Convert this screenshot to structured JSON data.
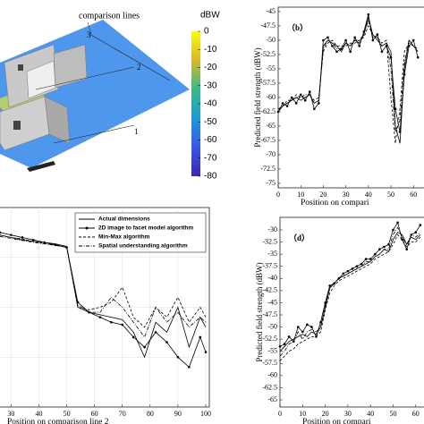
{
  "scene": {
    "annotation": "comparison lines",
    "line_labels": [
      "1",
      "2",
      "3"
    ],
    "colorbar": {
      "label": "dBW",
      "lim": [
        -80,
        0
      ],
      "ticks": [
        0,
        -10,
        -20,
        -30,
        -40,
        -50,
        -60,
        -70,
        -80
      ]
    }
  },
  "chart_data": [
    {
      "type": "line",
      "panel": "（b）",
      "ylabel": "Predicted field strength (dBW)",
      "xlabel": "Position on compari",
      "xlim": [
        0,
        62
      ],
      "ylim": [
        -75,
        -45
      ],
      "xticks": [
        0,
        10,
        20,
        30,
        40,
        50,
        60
      ],
      "yticks": [
        -45,
        -47.5,
        -50,
        -52.5,
        -55,
        -57.5,
        -60,
        -62.5,
        -65,
        -67.5,
        -70,
        -72.5,
        -75
      ],
      "grid": false,
      "x": [
        0,
        2,
        4,
        6,
        8,
        10,
        12,
        14,
        16,
        18,
        20,
        22,
        24,
        26,
        28,
        30,
        32,
        34,
        36,
        38,
        40,
        42,
        44,
        46,
        48,
        50,
        52,
        54,
        56,
        58,
        60,
        62
      ],
      "series": [
        {
          "name": "Actual dimensions",
          "color": "#000000",
          "linestyle": "solid",
          "marker": "none",
          "values": [
            -62.5,
            -61.5,
            -61,
            -60.5,
            -60,
            -60.5,
            -60,
            -59.5,
            -61,
            -60.5,
            -51,
            -50,
            -50.5,
            -51,
            -52,
            -50.5,
            -51,
            -50,
            -50.5,
            -49,
            -46,
            -49,
            -50,
            -51,
            -50.5,
            -52,
            -65,
            -68,
            -55,
            -50,
            -51,
            -52
          ]
        },
        {
          "name": "2D image to facet model algorithm",
          "color": "#000000",
          "linestyle": "solid",
          "marker": "o",
          "values": [
            -62.5,
            -61,
            -61.5,
            -60,
            -61,
            -59.5,
            -60.5,
            -59,
            -62,
            -61,
            -50,
            -49.5,
            -51,
            -52,
            -51.5,
            -50,
            -52,
            -49.5,
            -51,
            -48.5,
            -45.5,
            -50,
            -49,
            -52,
            -51,
            -53,
            -62,
            -66,
            -56,
            -51,
            -50,
            -53
          ]
        },
        {
          "name": "Min-Max algorithm",
          "color": "#000000",
          "linestyle": "dashed",
          "marker": "none",
          "values": [
            -62,
            -61.5,
            -60.5,
            -60.5,
            -59.5,
            -60,
            -60,
            -59.5,
            -60.5,
            -60,
            -52,
            -50.5,
            -50,
            -51,
            -51,
            -51,
            -50.5,
            -50.5,
            -50,
            -49.5,
            -47.5,
            -49,
            -49.5,
            -50.5,
            -50,
            -60,
            -68,
            -62,
            -52,
            -50.5,
            -51,
            -51.5
          ]
        },
        {
          "name": "Spatial understanding algorithm",
          "color": "#000000",
          "linestyle": "dashdot",
          "marker": "none",
          "values": [
            -62.5,
            -61.5,
            -61,
            -60.5,
            -60,
            -60,
            -59.5,
            -59.5,
            -61,
            -60.5,
            -51.5,
            -50,
            -50.5,
            -51.5,
            -51.5,
            -50.5,
            -51,
            -50,
            -50,
            -49,
            -46.5,
            -49.5,
            -49.5,
            -51,
            -50.5,
            -55,
            -66,
            -64,
            -54,
            -50,
            -51,
            -52
          ]
        }
      ]
    },
    {
      "type": "line",
      "xlabel": "Position on comparison line 2",
      "legend": "upper right",
      "xlim": [
        26,
        100
      ],
      "ylim": [
        -80,
        -40
      ],
      "xticks": [
        30,
        40,
        50,
        60,
        70,
        80,
        90,
        100
      ],
      "grid": true,
      "x": [
        26,
        30,
        34,
        38,
        42,
        46,
        50,
        54,
        58,
        62,
        66,
        70,
        74,
        78,
        82,
        86,
        90,
        94,
        98,
        100
      ],
      "series": [
        {
          "name": "Actual dimensions",
          "color": "#000000",
          "linestyle": "solid",
          "marker": "none",
          "values": [
            -45.5,
            -46,
            -46.5,
            -46.8,
            -47,
            -47.3,
            -47.8,
            -60,
            -61,
            -61.5,
            -62,
            -62.5,
            -65,
            -70,
            -63,
            -65,
            -60,
            -68,
            -62,
            -64
          ]
        },
        {
          "name": "2D image to facet model algorithm",
          "color": "#000000",
          "linestyle": "solid",
          "marker": "o",
          "values": [
            -45,
            -45.5,
            -46,
            -46.5,
            -47,
            -47.5,
            -48,
            -59,
            -61,
            -62,
            -63,
            -63.5,
            -66,
            -68,
            -65,
            -67,
            -70,
            -72,
            -66,
            -69
          ]
        },
        {
          "name": "Min-Max algorithm",
          "color": "#000000",
          "linestyle": "dashed",
          "marker": "none",
          "values": [
            -45.5,
            -46,
            -46.3,
            -46.8,
            -47.2,
            -47.5,
            -48,
            -60,
            -60.5,
            -60,
            -59,
            -56,
            -62,
            -64,
            -60,
            -62,
            -58,
            -63,
            -60,
            -62
          ]
        },
        {
          "name": "Spatial understanding algorithm",
          "color": "#000000",
          "linestyle": "dashdot",
          "marker": "none",
          "values": [
            -45.8,
            -46.2,
            -46.6,
            -47,
            -47.3,
            -47.6,
            -48,
            -59.5,
            -61,
            -61,
            -58,
            -60,
            -63,
            -66,
            -60,
            -63,
            -61,
            -64,
            -62,
            -63
          ]
        }
      ]
    },
    {
      "type": "line",
      "panel": "（d）",
      "ylabel": "Predicted field strength (dBW)",
      "xlabel": "Position on compari",
      "xlim": [
        0,
        62
      ],
      "ylim": [
        -65,
        -30
      ],
      "xticks": [
        0,
        10,
        20,
        30,
        40,
        50,
        60
      ],
      "yticks": [
        -30,
        -32.5,
        -35,
        -37.5,
        -40,
        -42.5,
        -45,
        -47.5,
        -50,
        -52.5,
        -55,
        -57.5,
        -60,
        -62.5,
        -65
      ],
      "grid": false,
      "x": [
        0,
        2,
        4,
        6,
        8,
        10,
        12,
        14,
        16,
        18,
        20,
        22,
        24,
        26,
        28,
        30,
        32,
        34,
        36,
        38,
        40,
        42,
        44,
        46,
        48,
        50,
        52,
        54,
        56,
        58,
        60,
        62
      ],
      "series": [
        {
          "name": "Actual dimensions",
          "color": "#000000",
          "linestyle": "solid",
          "marker": "none",
          "values": [
            -55,
            -54,
            -53,
            -52.5,
            -52,
            -51.5,
            -52,
            -51,
            -51.5,
            -50,
            -46,
            -42,
            -41,
            -40,
            -39.5,
            -39,
            -38.5,
            -38,
            -37.5,
            -37,
            -36.5,
            -35.5,
            -35,
            -34,
            -34.5,
            -32,
            -30.5,
            -31,
            -33,
            -31.5,
            -32,
            -31
          ]
        },
        {
          "name": "2D image to facet model algorithm",
          "color": "#000000",
          "linestyle": "solid",
          "marker": "o",
          "values": [
            -54,
            -53.5,
            -52,
            -53,
            -50,
            -51,
            -49.5,
            -50,
            -52,
            -49,
            -45,
            -41.5,
            -41,
            -40,
            -39,
            -38.5,
            -38,
            -37.5,
            -37,
            -36,
            -36,
            -35,
            -34,
            -33.5,
            -33,
            -30,
            -28.5,
            -32,
            -34,
            -31,
            -30.5,
            -29
          ]
        },
        {
          "name": "Min-Max algorithm",
          "color": "#000000",
          "linestyle": "dashed",
          "marker": "none",
          "values": [
            -57,
            -56,
            -55,
            -54.5,
            -53.5,
            -53,
            -52.5,
            -52,
            -52,
            -51,
            -46.5,
            -43,
            -41.5,
            -40.5,
            -40,
            -39.5,
            -39,
            -38.5,
            -38,
            -37.5,
            -37,
            -36,
            -35.5,
            -35,
            -34.5,
            -33,
            -31,
            -32,
            -33.5,
            -32.5,
            -32.5,
            -31.5
          ]
        },
        {
          "name": "Spatial understanding algorithm",
          "color": "#000000",
          "linestyle": "dashdot",
          "marker": "none",
          "values": [
            -56,
            -55,
            -53.5,
            -53,
            -51,
            -52.5,
            -51,
            -50.5,
            -51,
            -50,
            -45.5,
            -42,
            -41,
            -40,
            -39.5,
            -39,
            -38.5,
            -38,
            -37.5,
            -36.5,
            -36.5,
            -35.5,
            -35,
            -34,
            -34,
            -31,
            -29.5,
            -31.5,
            -33,
            -31,
            -31.5,
            -30.5
          ]
        }
      ]
    }
  ]
}
